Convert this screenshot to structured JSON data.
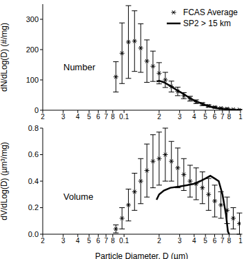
{
  "chart_data": [
    {
      "type": "scatter",
      "y_label": "dN/dLog(D) (#/mg)",
      "annotation": "Number",
      "log": "x",
      "legend": "top-right",
      "xlim": [
        0.02,
        1
      ],
      "xticks": [
        {
          "value": 0.02,
          "label": "2"
        },
        {
          "value": 0.03,
          "label": "3"
        },
        {
          "value": 0.04,
          "label": "4"
        },
        {
          "value": 0.05,
          "label": "5"
        },
        {
          "value": 0.06,
          "label": "6"
        },
        {
          "value": 0.07,
          "label": "7"
        },
        {
          "value": 0.08,
          "label": "8"
        },
        0.1,
        {
          "value": 0.2,
          "label": "2"
        },
        {
          "value": 0.3,
          "label": "3"
        },
        {
          "value": 0.4,
          "label": "4"
        },
        {
          "value": 0.5,
          "label": "5"
        },
        {
          "value": 0.6,
          "label": "6"
        },
        {
          "value": 0.7,
          "label": "7"
        },
        {
          "value": 0.8,
          "label": "8"
        },
        1
      ],
      "ylim": [
        0,
        350
      ],
      "yticks": [
        0,
        100,
        200,
        300
      ],
      "series": [
        {
          "name": "FCAS Average",
          "color": "#000000",
          "marker": "asterisk",
          "x": [
            0.085,
            0.096,
            0.109,
            0.123,
            0.139,
            0.157,
            0.177,
            0.2,
            0.226,
            0.255,
            0.289,
            0.326,
            0.369,
            0.416,
            0.471,
            0.532,
            0.601,
            0.679,
            0.767,
            0.867,
            0.98
          ],
          "values": [
            110,
            188,
            225,
            228,
            205,
            162,
            145,
            122,
            100,
            78,
            62,
            48,
            38,
            28,
            20,
            14,
            10,
            7,
            5,
            3,
            2
          ],
          "errors": [
            50,
            100,
            120,
            100,
            80,
            70,
            50,
            35,
            25,
            18,
            14,
            10,
            8,
            6,
            5,
            4,
            3,
            2,
            2,
            1,
            1
          ]
        },
        {
          "name": "SP2 > 15 km",
          "type": "line",
          "color": "#000000",
          "x": [
            0.19,
            0.2,
            0.22,
            0.25,
            0.28,
            0.32,
            0.36,
            0.4,
            0.45,
            0.5,
            0.55,
            0.6,
            0.7,
            0.8,
            0.9,
            1.0
          ],
          "values": [
            95,
            97,
            92,
            80,
            68,
            55,
            42,
            32,
            24,
            17,
            12,
            8,
            4,
            2,
            1,
            0.5
          ]
        }
      ]
    },
    {
      "type": "scatter",
      "y_label": "dV/dLog(D) (µm³/mg)",
      "x_label": "Particle Diameter, D (µm)",
      "annotation": "Volume",
      "log": "x",
      "xlim": [
        0.02,
        1
      ],
      "xticks": [
        {
          "value": 0.02,
          "label": "2"
        },
        {
          "value": 0.03,
          "label": "3"
        },
        {
          "value": 0.04,
          "label": "4"
        },
        {
          "value": 0.05,
          "label": "5"
        },
        {
          "value": 0.06,
          "label": "6"
        },
        {
          "value": 0.07,
          "label": "7"
        },
        {
          "value": 0.08,
          "label": "8"
        },
        0.1,
        {
          "value": 0.2,
          "label": "2"
        },
        {
          "value": 0.3,
          "label": "3"
        },
        {
          "value": 0.4,
          "label": "4"
        },
        {
          "value": 0.5,
          "label": "5"
        },
        {
          "value": 0.6,
          "label": "6"
        },
        {
          "value": 0.7,
          "label": "7"
        },
        {
          "value": 0.8,
          "label": "8"
        },
        1
      ],
      "ylim": [
        0,
        0.8
      ],
      "yticks": [
        {
          "value": 0,
          "label": "0.0"
        },
        0.2,
        0.4,
        0.6,
        0.8
      ],
      "series": [
        {
          "color": "#000000",
          "marker": "asterisk",
          "x": [
            0.085,
            0.096,
            0.109,
            0.123,
            0.139,
            0.157,
            0.177,
            0.2,
            0.226,
            0.255,
            0.289,
            0.326,
            0.369,
            0.416,
            0.471,
            0.532,
            0.601,
            0.679,
            0.767,
            0.867,
            0.98
          ],
          "values": [
            0.04,
            0.12,
            0.22,
            0.32,
            0.4,
            0.48,
            0.55,
            0.57,
            0.6,
            0.55,
            0.5,
            0.45,
            0.4,
            0.38,
            0.35,
            0.3,
            0.25,
            0.22,
            0.18,
            0.12,
            0.08
          ],
          "errors": [
            0.03,
            0.08,
            0.12,
            0.14,
            0.17,
            0.2,
            0.2,
            0.2,
            0.2,
            0.15,
            0.15,
            0.12,
            0.12,
            0.12,
            0.12,
            0.12,
            0.12,
            0.1,
            0.1,
            0.08,
            0.08
          ]
        },
        {
          "type": "line",
          "color": "#000000",
          "x": [
            0.19,
            0.2,
            0.22,
            0.25,
            0.3,
            0.35,
            0.4,
            0.45,
            0.5,
            0.55,
            0.6,
            0.65,
            0.7,
            0.75,
            0.78,
            0.8
          ],
          "values": [
            0.26,
            0.3,
            0.33,
            0.35,
            0.36,
            0.37,
            0.38,
            0.4,
            0.42,
            0.44,
            0.42,
            0.4,
            0.3,
            0.15,
            0.02,
            0
          ]
        }
      ]
    }
  ]
}
